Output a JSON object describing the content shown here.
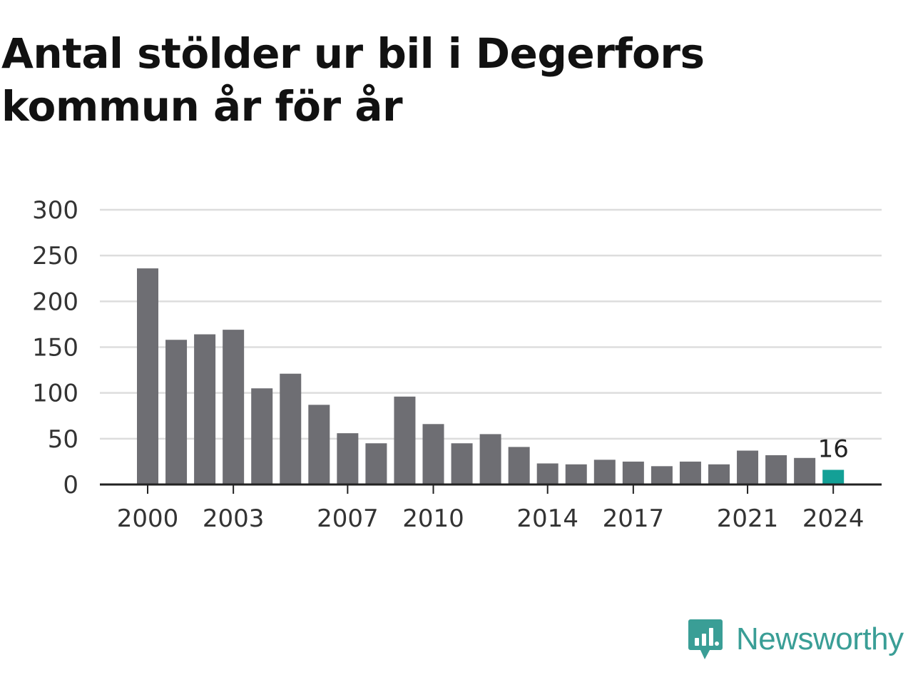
{
  "title": "Antal stölder ur bil i Degerfors kommun år för år",
  "brand": {
    "name": "Newsworthy",
    "logo_icon": "bar-chart-speech-bubble-icon"
  },
  "colors": {
    "bar": "#6e6e73",
    "highlight": "#13a096",
    "grid": "#dddddd",
    "axis": "#222222",
    "brand": "#3a9e96"
  },
  "chart_data": {
    "type": "bar",
    "categories": [
      "2000",
      "2001",
      "2002",
      "2003",
      "2004",
      "2005",
      "2006",
      "2007",
      "2008",
      "2009",
      "2010",
      "2011",
      "2012",
      "2013",
      "2014",
      "2015",
      "2016",
      "2017",
      "2018",
      "2019",
      "2020",
      "2021",
      "2022",
      "2023",
      "2024"
    ],
    "values": [
      236,
      158,
      164,
      169,
      105,
      121,
      87,
      56,
      45,
      96,
      66,
      45,
      55,
      41,
      23,
      22,
      27,
      25,
      20,
      25,
      22,
      37,
      32,
      29,
      16
    ],
    "highlight_category": "2024",
    "highlight_label": "16",
    "x_tick_labels": [
      "2000",
      "2003",
      "2007",
      "2010",
      "2014",
      "2017",
      "2021",
      "2024"
    ],
    "y_ticks": [
      0,
      50,
      100,
      150,
      200,
      250,
      300
    ],
    "ylim": [
      0,
      300
    ],
    "grid": true
  }
}
